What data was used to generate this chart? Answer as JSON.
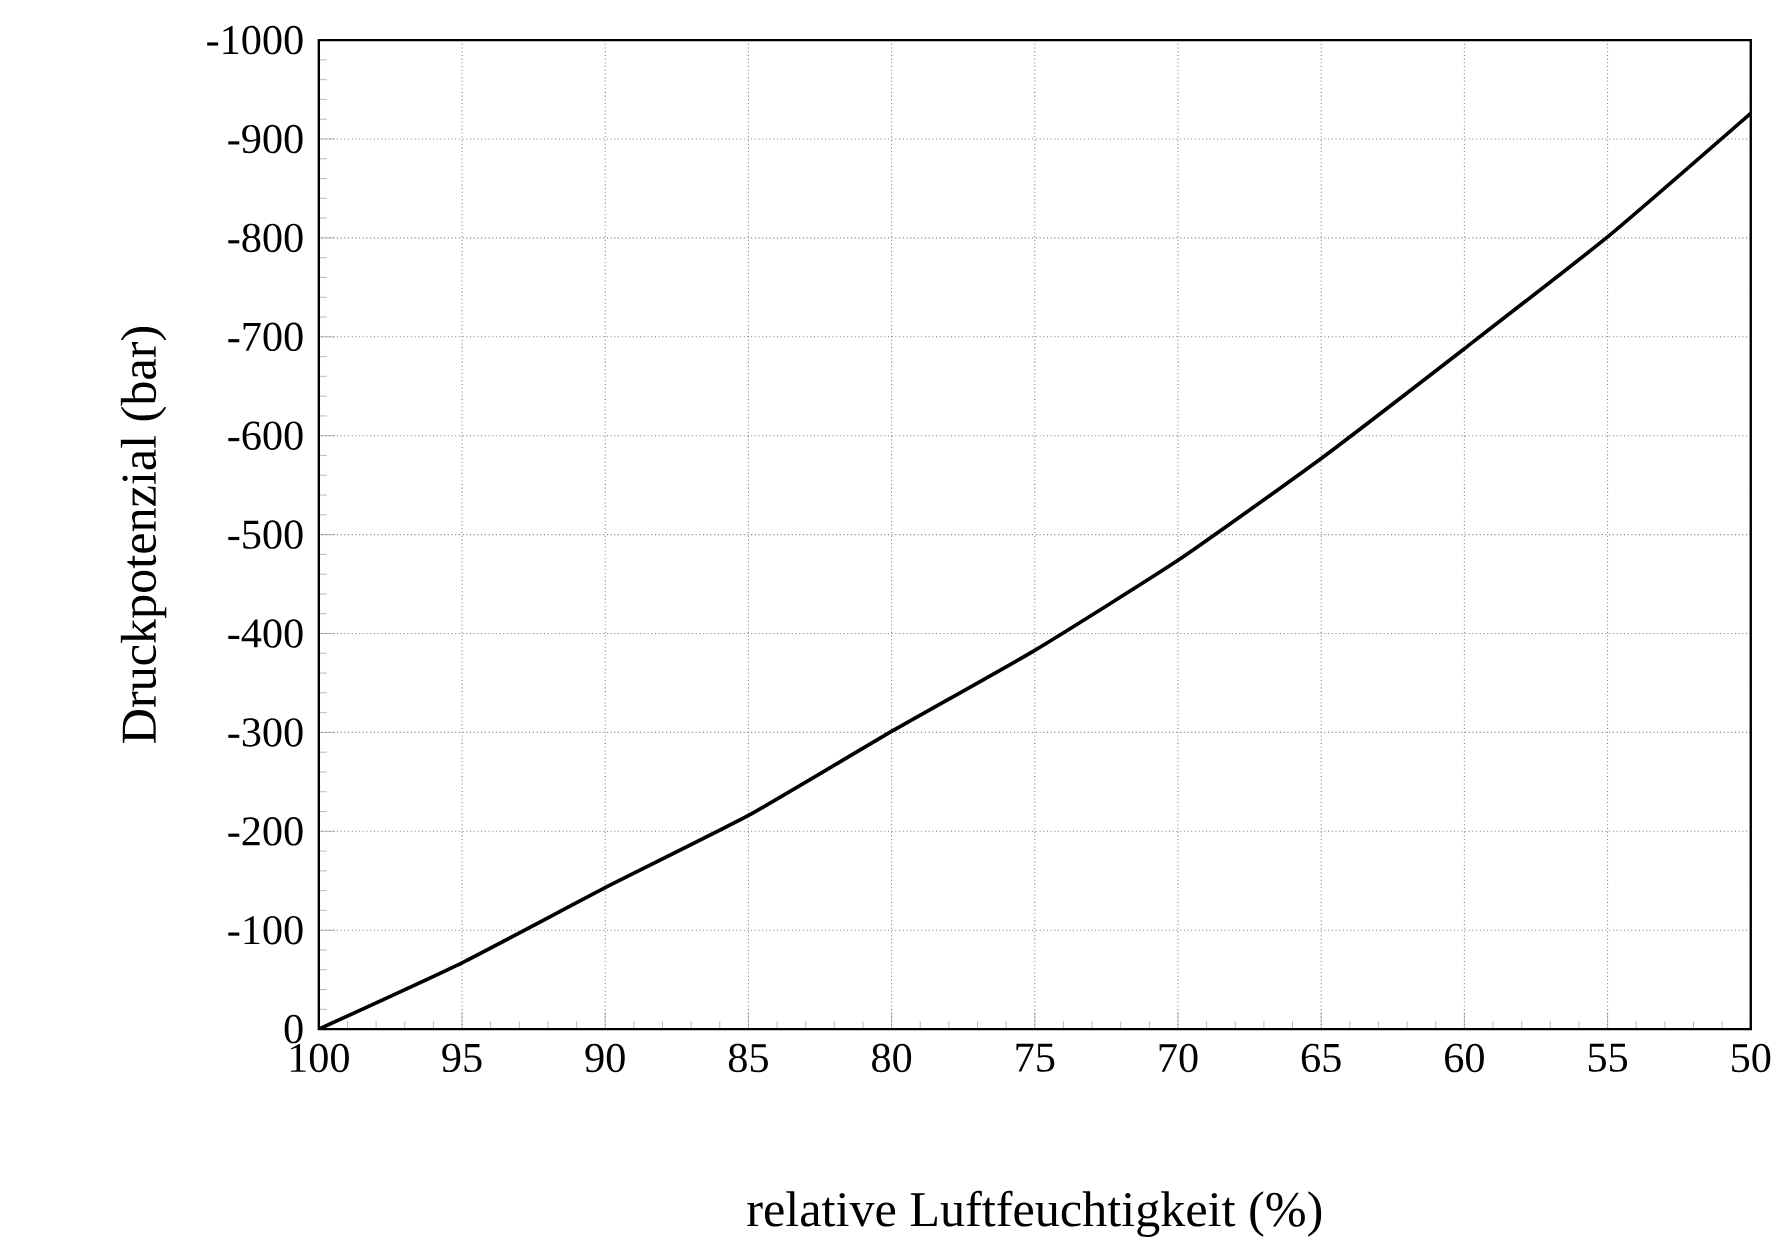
{
  "chart_data": {
    "type": "line",
    "xlabel": "relative Luftfeuchtigkeit (%)",
    "ylabel": "Druckpotenzial (bar)",
    "x": [
      100,
      95,
      90,
      85,
      80,
      75,
      70,
      65,
      60,
      55,
      50
    ],
    "series": [
      {
        "color": "#000000",
        "values": [
          0,
          -67,
          -143,
          -216,
          -301,
          -383,
          -474,
          -577,
          -688,
          -801,
          -926
        ]
      }
    ],
    "xlim": [
      100,
      50
    ],
    "ylim": [
      0,
      -1000
    ],
    "xticks": [
      100,
      95,
      90,
      85,
      80,
      75,
      70,
      65,
      60,
      55,
      50
    ],
    "yticks": [
      0,
      -100,
      -200,
      -300,
      -400,
      -500,
      -600,
      -700,
      -800,
      -900,
      -1000
    ],
    "grid": true,
    "marker": "none",
    "line_style": "solid"
  }
}
